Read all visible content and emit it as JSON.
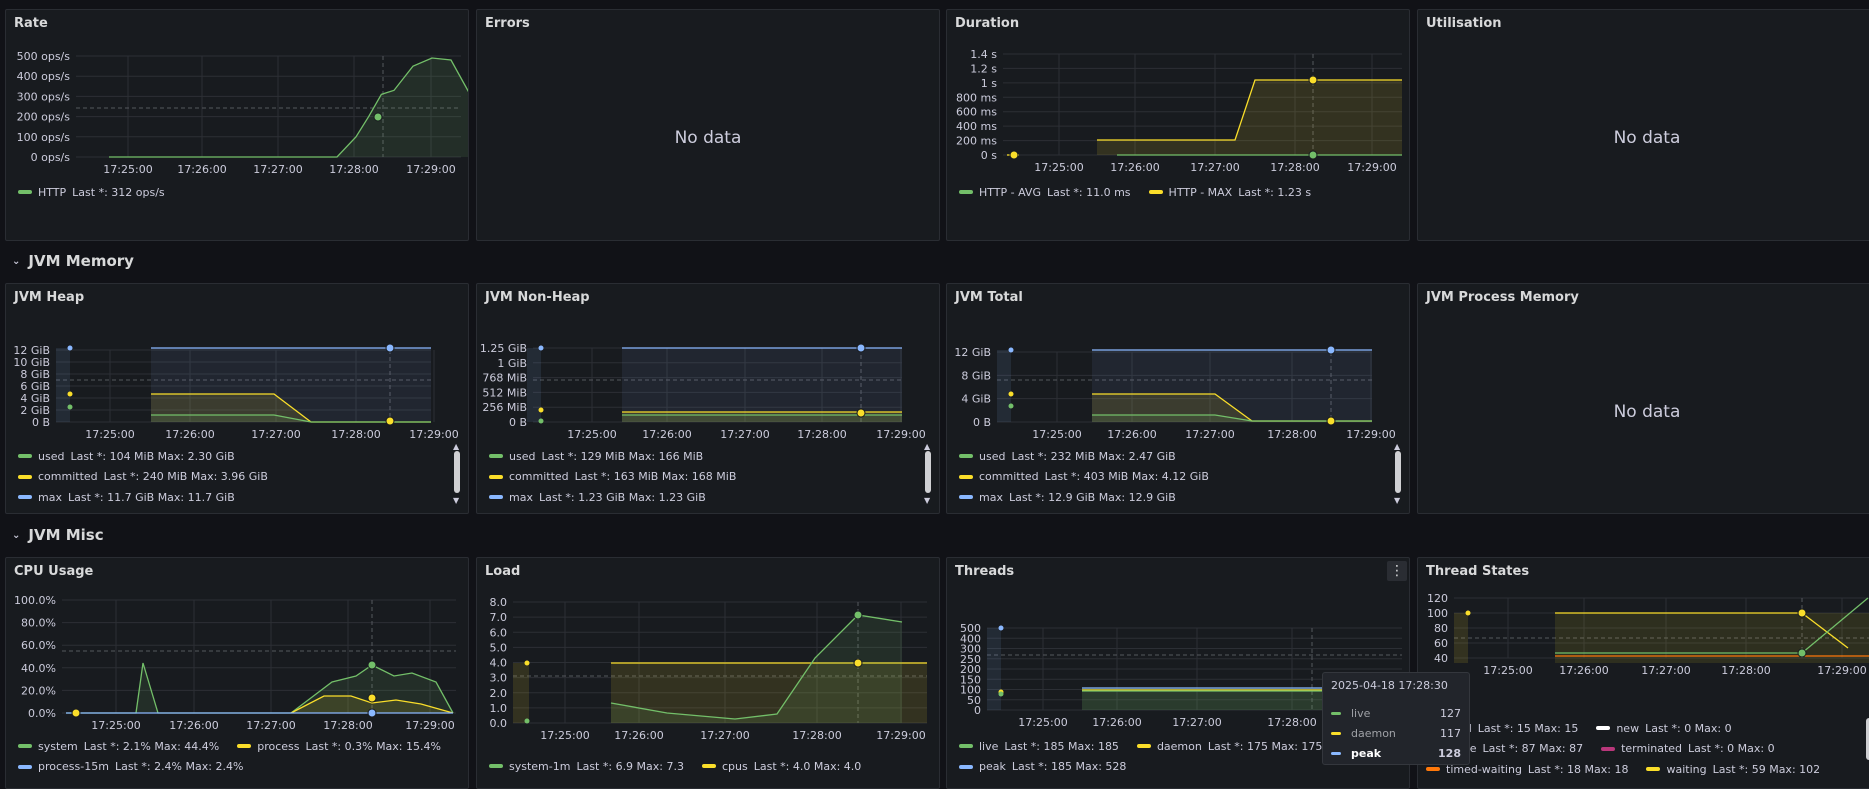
{
  "rows": [
    {
      "title": "JVM Memory"
    },
    {
      "title": "JVM Misc"
    }
  ],
  "panels": {
    "rate": {
      "title": "Rate",
      "legend": [
        {
          "name": "HTTP",
          "stat": "Last *: 312 ops/s",
          "color": "#73bf69"
        }
      ]
    },
    "errors": {
      "title": "Errors",
      "nodata": "No data"
    },
    "duration": {
      "title": "Duration",
      "legend": [
        {
          "name": "HTTP - AVG",
          "stat": "Last *: 11.0 ms",
          "color": "#73bf69"
        },
        {
          "name": "HTTP - MAX",
          "stat": "Last *: 1.23 s",
          "color": "#fade2a"
        }
      ]
    },
    "utilisation": {
      "title": "Utilisation",
      "nodata": "No data"
    },
    "heap": {
      "title": "JVM Heap",
      "legend": [
        {
          "name": "used",
          "stat": "Last *: 104 MiB  Max: 2.30 GiB",
          "color": "#73bf69"
        },
        {
          "name": "committed",
          "stat": "Last *: 240 MiB  Max: 3.96 GiB",
          "color": "#fade2a"
        },
        {
          "name": "max",
          "stat": "Last *: 11.7 GiB  Max: 11.7 GiB",
          "color": "#8ab8ff"
        }
      ]
    },
    "nonheap": {
      "title": "JVM Non-Heap",
      "legend": [
        {
          "name": "used",
          "stat": "Last *: 129 MiB  Max: 166 MiB",
          "color": "#73bf69"
        },
        {
          "name": "committed",
          "stat": "Last *: 163 MiB  Max: 168 MiB",
          "color": "#fade2a"
        },
        {
          "name": "max",
          "stat": "Last *: 1.23 GiB  Max: 1.23 GiB",
          "color": "#8ab8ff"
        }
      ]
    },
    "total": {
      "title": "JVM Total",
      "legend": [
        {
          "name": "used",
          "stat": "Last *: 232 MiB  Max: 2.47 GiB",
          "color": "#73bf69"
        },
        {
          "name": "committed",
          "stat": "Last *: 403 MiB  Max: 4.12 GiB",
          "color": "#fade2a"
        },
        {
          "name": "max",
          "stat": "Last *: 12.9 GiB  Max: 12.9 GiB",
          "color": "#8ab8ff"
        }
      ]
    },
    "procmem": {
      "title": "JVM Process Memory",
      "nodata": "No data"
    },
    "cpu": {
      "title": "CPU Usage",
      "legend_rows": [
        [
          {
            "name": "system",
            "stat": "Last *: 2.1%  Max: 44.4%",
            "color": "#73bf69"
          },
          {
            "name": "process",
            "stat": "Last *: 0.3%  Max: 15.4%",
            "color": "#fade2a"
          }
        ],
        [
          {
            "name": "process-15m",
            "stat": "Last *: 2.4%  Max: 2.4%",
            "color": "#8ab8ff"
          }
        ]
      ]
    },
    "load": {
      "title": "Load",
      "legend_rows": [
        [
          {
            "name": "system-1m",
            "stat": "Last *: 6.9  Max: 7.3",
            "color": "#73bf69"
          },
          {
            "name": "cpus",
            "stat": "Last *: 4.0  Max: 4.0",
            "color": "#fade2a"
          }
        ]
      ]
    },
    "threads": {
      "title": "Threads",
      "menu": "⋮",
      "legend_rows": [
        [
          {
            "name": "live",
            "stat": "Last *: 185  Max: 185",
            "color": "#73bf69"
          },
          {
            "name": "daemon",
            "stat": "Last *: 175  Max: 175",
            "color": "#fade2a"
          }
        ],
        [
          {
            "name": "peak",
            "stat": "Last *: 185  Max: 528",
            "color": "#8ab8ff"
          }
        ]
      ],
      "tooltip": {
        "time": "2025-04-18 17:28:30",
        "rows": [
          {
            "name": "live",
            "value": "127",
            "color": "#73bf69"
          },
          {
            "name": "daemon",
            "value": "117",
            "color": "#fade2a"
          },
          {
            "name": "peak",
            "value": "128",
            "color": "#8ab8ff"
          }
        ]
      }
    },
    "tstates": {
      "title": "Thread States",
      "legend_rows": [
        [
          {
            "name": "cked",
            "stat": "Last *: 15  Max: 15",
            "color": "#73bf69"
          },
          {
            "name": "new",
            "stat": "Last *: 0  Max: 0",
            "color": "#ffffff"
          }
        ],
        [
          {
            "name": "nable",
            "stat": "Last *: 87  Max: 87",
            "color": "#fade2a"
          },
          {
            "name": "terminated",
            "stat": "Last *: 0  Max: 0",
            "color": "#b8377a"
          }
        ],
        [
          {
            "name": "timed-waiting",
            "stat": "Last *: 18  Max: 18",
            "color": "#ff780a"
          },
          {
            "name": "waiting",
            "stat": "Last *: 59  Max: 102",
            "color": "#fade2a"
          }
        ]
      ]
    }
  },
  "charts": {
    "rate": {
      "type": "line",
      "y_ticks": [
        "500 ops/s",
        "400 ops/s",
        "300 ops/s",
        "200 ops/s",
        "100 ops/s",
        "0 ops/s"
      ],
      "x_ticks": [
        "17:25:00",
        "17:26:00",
        "17:27:00",
        "17:28:00",
        "17:29:00"
      ],
      "series": [
        {
          "name": "HTTP",
          "color": "#73bf69",
          "x": [
            "17:24:45",
            "17:25:30",
            "17:26:15",
            "17:27:00",
            "17:27:30",
            "17:27:45",
            "17:28:00",
            "17:28:10",
            "17:28:20",
            "17:28:30",
            "17:28:45",
            "17:29:00",
            "17:29:15",
            "17:29:30"
          ],
          "y": [
            0,
            0,
            0,
            0,
            0,
            0,
            100,
            200,
            310,
            330,
            450,
            490,
            480,
            310
          ]
        }
      ]
    },
    "duration": {
      "type": "line",
      "y_ticks": [
        "1.4 s",
        "1.2 s",
        "1 s",
        "800 ms",
        "600 ms",
        "400 ms",
        "200 ms",
        "0 s"
      ],
      "x_ticks": [
        "17:25:00",
        "17:26:00",
        "17:27:00",
        "17:28:00",
        "17:29:00"
      ]
    },
    "heap": {
      "type": "area",
      "y_ticks": [
        "12 GiB",
        "10 GiB",
        "8 GiB",
        "6 GiB",
        "4 GiB",
        "2 GiB",
        "0 B"
      ],
      "x_ticks": [
        "17:25:00",
        "17:26:00",
        "17:27:00",
        "17:28:00",
        "17:29:00"
      ]
    },
    "nonheap": {
      "type": "area",
      "y_ticks": [
        "1.25 GiB",
        "1 GiB",
        "768 MiB",
        "512 MiB",
        "256 MiB",
        "0 B"
      ],
      "x_ticks": [
        "17:25:00",
        "17:26:00",
        "17:27:00",
        "17:28:00",
        "17:29:00"
      ]
    },
    "total": {
      "type": "area",
      "y_ticks": [
        "12 GiB",
        "8 GiB",
        "4 GiB",
        "0 B"
      ],
      "x_ticks": [
        "17:25:00",
        "17:26:00",
        "17:27:00",
        "17:28:00",
        "17:29:00"
      ]
    },
    "cpu": {
      "type": "line",
      "y_ticks": [
        "100.0%",
        "80.0%",
        "60.0%",
        "40.0%",
        "20.0%",
        "0.0%"
      ],
      "x_ticks": [
        "17:25:00",
        "17:26:00",
        "17:27:00",
        "17:28:00",
        "17:29:00"
      ]
    },
    "load": {
      "type": "line",
      "y_ticks": [
        "8.0",
        "7.0",
        "6.0",
        "5.0",
        "4.0",
        "3.0",
        "2.0",
        "1.0",
        "0.0"
      ],
      "x_ticks": [
        "17:25:00",
        "17:26:00",
        "17:27:00",
        "17:28:00",
        "17:29:00"
      ]
    },
    "threads": {
      "type": "area",
      "y_ticks": [
        "500",
        "400",
        "300",
        "250",
        "200",
        "150",
        "100",
        "50",
        "0"
      ],
      "x_ticks": [
        "17:25:00",
        "17:26:00",
        "17:27:00",
        "17:28:00"
      ]
    },
    "tstates": {
      "type": "area",
      "y_ticks": [
        "120",
        "100",
        "80",
        "60",
        "40"
      ],
      "x_ticks": [
        "17:25:00",
        "17:26:00",
        "17:27:00",
        "17:28:00",
        "17:29:00"
      ]
    }
  }
}
